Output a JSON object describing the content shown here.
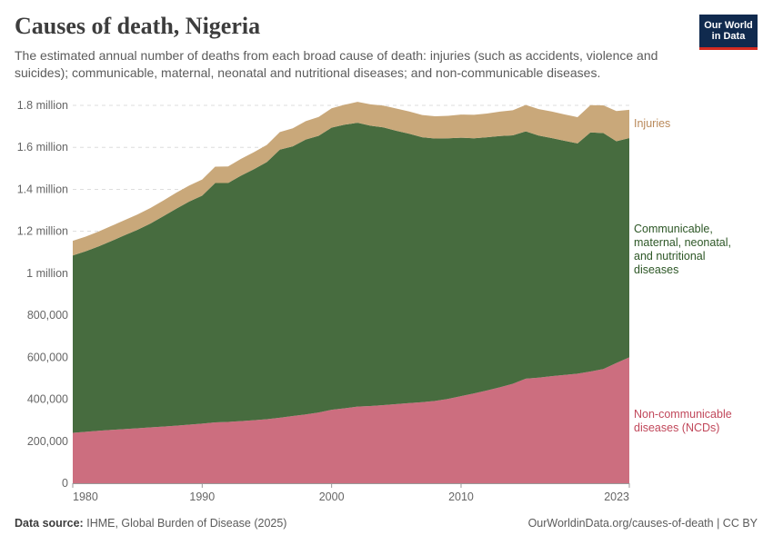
{
  "header": {
    "title": "Causes of death, Nigeria",
    "subtitle": "The estimated annual number of deaths from each broad cause of death: injuries (such as accidents, violence and suicides); communicable, maternal, neonatal and nutritional diseases; and non-communicable diseases.",
    "logo_line1": "Our World",
    "logo_line2": "in Data"
  },
  "footer": {
    "source_label": "Data source:",
    "source_text": "IHME, Global Burden of Disease (2025)",
    "url_text": "OurWorldinData.org/causes-of-death | CC BY"
  },
  "colors": {
    "ncd": "#cc6e7f",
    "communicable": "#476c3f",
    "injuries": "#c9a87a",
    "ncd_label": "#c1485b",
    "communicable_label": "#2d5726",
    "injuries_label": "#b9895a"
  },
  "chart_data": {
    "type": "area",
    "stacked": true,
    "title": "Causes of death, Nigeria",
    "xlabel": "",
    "ylabel": "",
    "xlim": [
      1980,
      2023
    ],
    "ylim": [
      0,
      1800000
    ],
    "x_ticks": [
      1980,
      1990,
      2000,
      2010,
      2023
    ],
    "y_ticks": [
      0,
      200000,
      400000,
      600000,
      800000,
      1000000,
      1200000,
      1400000,
      1600000,
      1800000
    ],
    "y_tick_labels": [
      "0",
      "200,000",
      "400,000",
      "600,000",
      "800,000",
      "1 million",
      "1.2 million",
      "1.4 million",
      "1.6 million",
      "1.8 million"
    ],
    "x": [
      1980,
      1981,
      1982,
      1983,
      1984,
      1985,
      1986,
      1987,
      1988,
      1989,
      1990,
      1991,
      1992,
      1993,
      1994,
      1995,
      1996,
      1997,
      1998,
      1999,
      2000,
      2001,
      2002,
      2003,
      2004,
      2005,
      2006,
      2007,
      2008,
      2009,
      2010,
      2011,
      2012,
      2013,
      2014,
      2015,
      2016,
      2017,
      2018,
      2019,
      2020,
      2021,
      2022,
      2023
    ],
    "series": [
      {
        "name": "Non-communicable diseases (NCDs)",
        "label_lines": [
          "Non-communicable",
          "diseases (NCDs)"
        ],
        "values": [
          240000,
          245000,
          250000,
          254000,
          258000,
          262000,
          266000,
          270000,
          274000,
          279000,
          284000,
          290000,
          292000,
          296000,
          300000,
          305000,
          312000,
          320000,
          328000,
          337000,
          350000,
          357000,
          365000,
          368000,
          372000,
          377000,
          382000,
          386000,
          392000,
          402000,
          415000,
          428000,
          442000,
          457000,
          474000,
          498000,
          503000,
          510000,
          516000,
          522000,
          532000,
          544000,
          573000,
          600000
        ]
      },
      {
        "name": "Communicable, maternal, neonatal, and nutritional diseases",
        "label_lines": [
          "Communicable,",
          "maternal, neonatal,",
          "and nutritional",
          "diseases"
        ],
        "values": [
          845000,
          860000,
          878000,
          900000,
          923000,
          945000,
          971000,
          1002000,
          1034000,
          1063000,
          1086000,
          1140000,
          1138000,
          1169000,
          1196000,
          1225000,
          1277000,
          1285000,
          1309000,
          1318000,
          1344000,
          1351000,
          1352000,
          1335000,
          1323000,
          1302000,
          1283000,
          1262000,
          1250000,
          1241000,
          1231000,
          1215000,
          1206000,
          1197000,
          1183000,
          1178000,
          1153000,
          1134000,
          1115000,
          1097000,
          1139000,
          1124000,
          1056000,
          1044000
        ]
      },
      {
        "name": "Injuries",
        "label_lines": [
          "Injuries"
        ],
        "values": [
          70000,
          70000,
          71000,
          72000,
          72000,
          73000,
          74000,
          75000,
          76000,
          76000,
          77000,
          78000,
          79000,
          80000,
          81000,
          82000,
          84000,
          86000,
          88000,
          90000,
          92000,
          95000,
          100000,
          102000,
          104000,
          106000,
          106000,
          106000,
          106000,
          107000,
          110000,
          112000,
          113000,
          116000,
          120000,
          126000,
          126000,
          127000,
          126000,
          125000,
          130000,
          132000,
          144000,
          135000
        ]
      }
    ]
  }
}
